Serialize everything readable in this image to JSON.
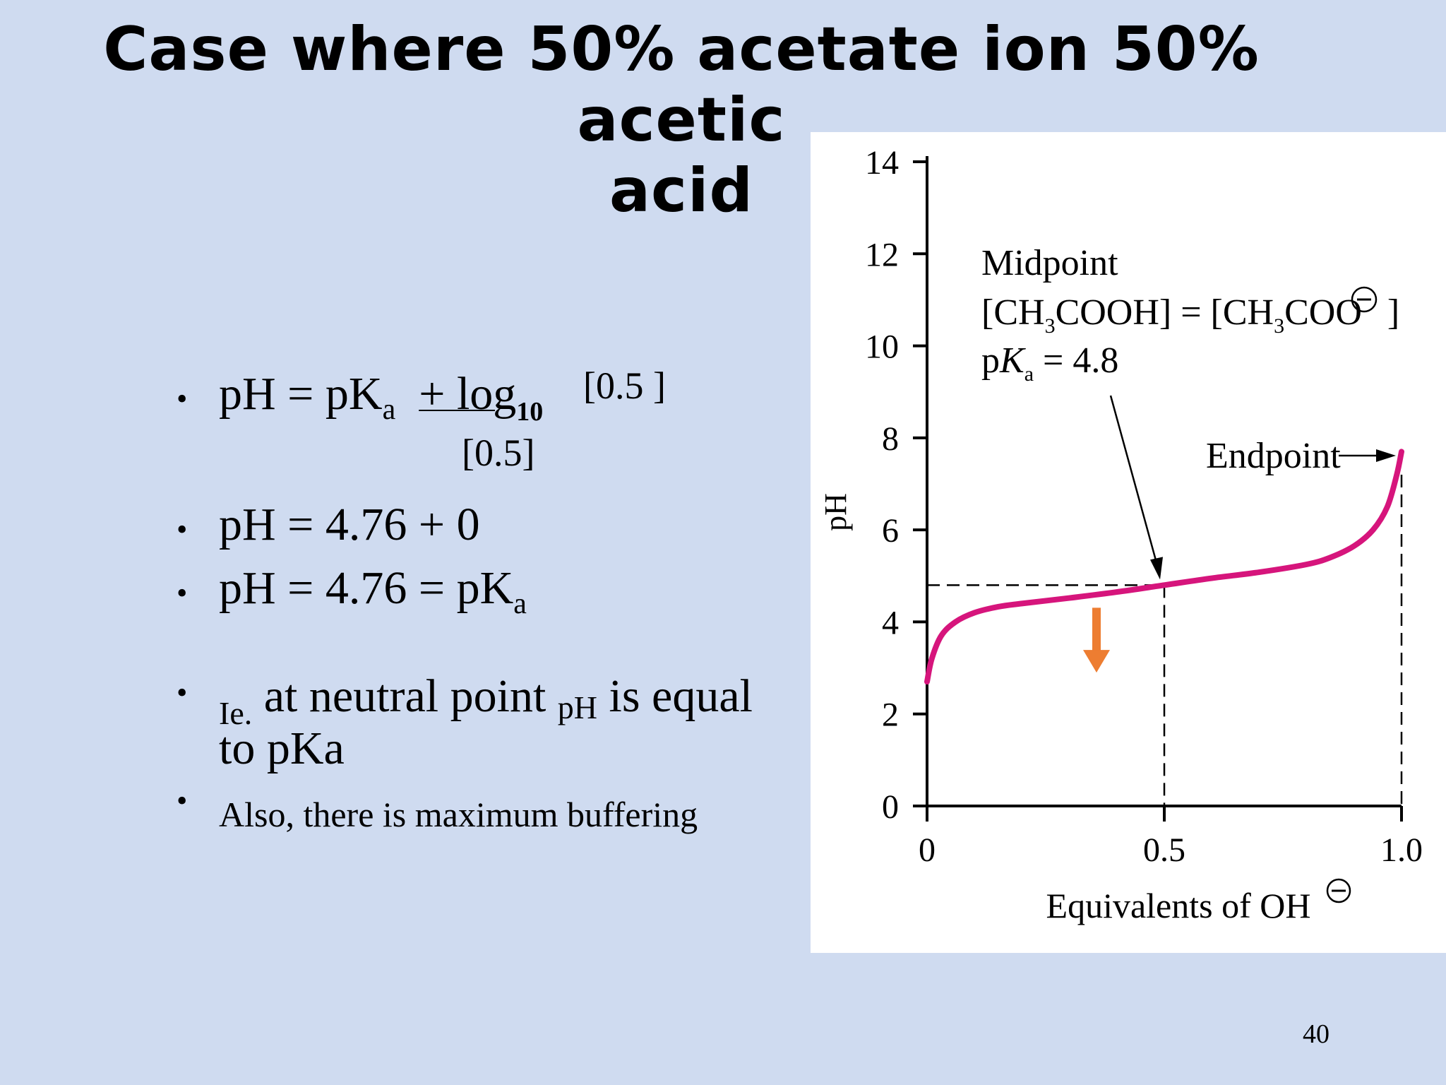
{
  "title": {
    "line1": "Case where 50% acetate ion 50% acetic",
    "line2": "acid"
  },
  "bullets": {
    "b1": {
      "prefix": "pH = pK",
      "sub": "a",
      "log": "+ log",
      "log_base": "10",
      "numerator": "[0.5 ]",
      "denominator": "[0.5]"
    },
    "b2": "pH = 4.76 + 0",
    "b3": {
      "main": "pH = 4.76 = pK",
      "sub": "a"
    },
    "b4": {
      "ie": "Ie.",
      "text1": " at neutral point ",
      "ph_sub": "pH",
      "text2": " is equal",
      "line2": "to pKa"
    },
    "b5": "Also, there is maximum buffering"
  },
  "page_number": "40",
  "colors": {
    "background": "#cfdbf0",
    "curve": "#d6157c",
    "arrow": "#ed7d31"
  },
  "chart_data": {
    "type": "line",
    "xlabel": "Equivalents of OH",
    "ylabel": "pH",
    "xlim": [
      0,
      1.0
    ],
    "ylim": [
      0,
      14
    ],
    "x_ticks": [
      "0",
      "0.5",
      "1.0"
    ],
    "y_ticks": [
      "0",
      "2",
      "4",
      "6",
      "8",
      "10",
      "12",
      "14"
    ],
    "series": [
      {
        "x": [
          0,
          0.01,
          0.03,
          0.06,
          0.1,
          0.15,
          0.2,
          0.3,
          0.4,
          0.5,
          0.6,
          0.7,
          0.8,
          0.85,
          0.9,
          0.94,
          0.97,
          0.99,
          1.0
        ],
        "y": [
          2.7,
          3.2,
          3.7,
          4.0,
          4.2,
          4.33,
          4.4,
          4.52,
          4.65,
          4.8,
          4.95,
          5.08,
          5.25,
          5.4,
          5.65,
          6.0,
          6.5,
          7.2,
          7.7
        ]
      }
    ],
    "annotations": {
      "midpoint_label": "Midpoint",
      "midpoint_eq_left": "[CH",
      "midpoint_eq_sub1": "3",
      "midpoint_eq_mid": "COOH] = [CH",
      "midpoint_eq_sub2": "3",
      "midpoint_eq_right": "COO",
      "midpoint_eq_close": "]",
      "pka_p": "p",
      "pka_k": "K",
      "pka_sub": "a",
      "pka_value": " = 4.8",
      "endpoint_label": "Endpoint",
      "midpoint_x": 0.5,
      "midpoint_y": 4.8,
      "endpoint_x": 1.0
    }
  }
}
